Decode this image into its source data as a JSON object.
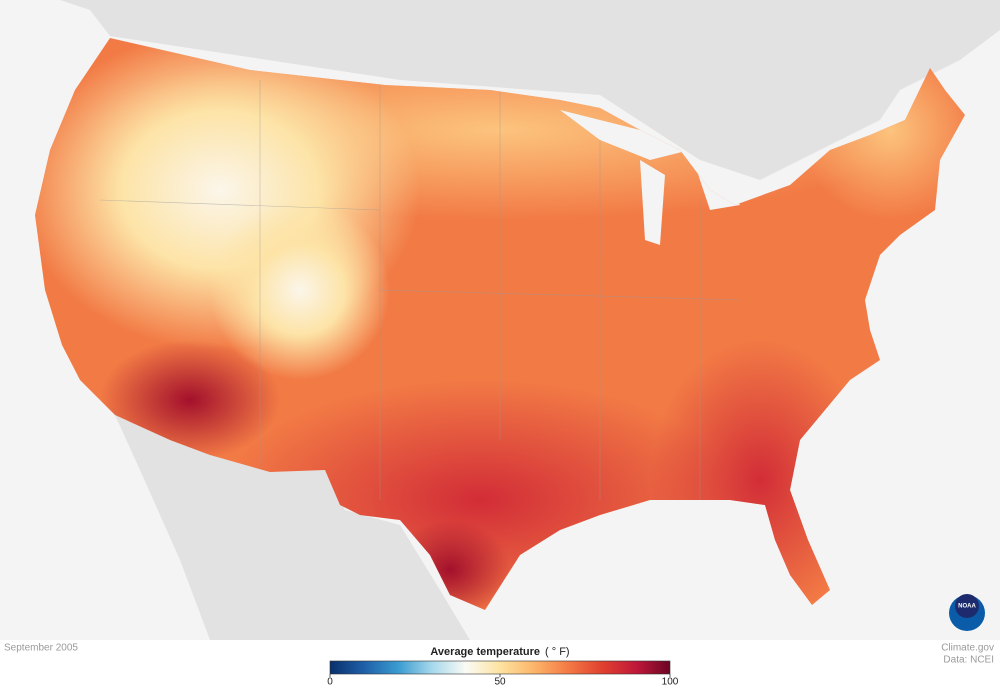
{
  "caption": "September 2005",
  "legend": {
    "title": "Average temperature",
    "unit": "( ° F)",
    "range": [
      0,
      100
    ],
    "ticks": [
      0,
      50,
      100
    ],
    "colors": [
      "#08306b",
      "#1f5fa8",
      "#3a9bd0",
      "#a6d8ec",
      "#fbfbf5",
      "#fde3a0",
      "#fbb56a",
      "#f47a45",
      "#e0412f",
      "#c0183a",
      "#6b0524"
    ]
  },
  "credits": [
    "Climate.gov",
    "Data: NCEI"
  ],
  "logo": "NOAA"
}
